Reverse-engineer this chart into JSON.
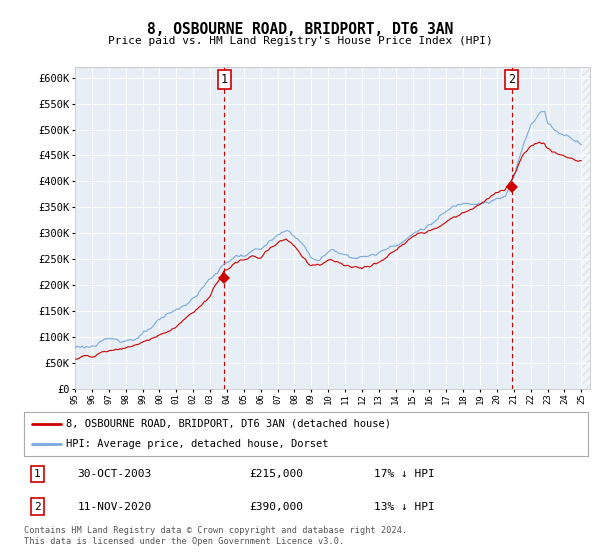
{
  "title": "8, OSBOURNE ROAD, BRIDPORT, DT6 3AN",
  "subtitle": "Price paid vs. HM Land Registry's House Price Index (HPI)",
  "bg_color": "#e8eef5",
  "hpi_color": "#7aaadd",
  "price_color": "#cc0000",
  "vline_color": "#cc0000",
  "ylim": [
    0,
    620000
  ],
  "yticks": [
    0,
    50000,
    100000,
    150000,
    200000,
    250000,
    300000,
    350000,
    400000,
    450000,
    500000,
    550000,
    600000
  ],
  "ytick_labels": [
    "£0",
    "£50K",
    "£100K",
    "£150K",
    "£200K",
    "£250K",
    "£300K",
    "£350K",
    "£400K",
    "£450K",
    "£500K",
    "£550K",
    "£600K"
  ],
  "sale1_year": 2003.83,
  "sale1_price": 215000,
  "sale1_label": "1",
  "sale2_year": 2020.87,
  "sale2_price": 390000,
  "sale2_label": "2",
  "legend_line1": "8, OSBOURNE ROAD, BRIDPORT, DT6 3AN (detached house)",
  "legend_line2": "HPI: Average price, detached house, Dorset",
  "table_row1": [
    "1",
    "30-OCT-2003",
    "£215,000",
    "17% ↓ HPI"
  ],
  "table_row2": [
    "2",
    "11-NOV-2020",
    "£390,000",
    "13% ↓ HPI"
  ],
  "footer": "Contains HM Land Registry data © Crown copyright and database right 2024.\nThis data is licensed under the Open Government Licence v3.0.",
  "xmin": 1995.0,
  "xmax": 2025.5
}
